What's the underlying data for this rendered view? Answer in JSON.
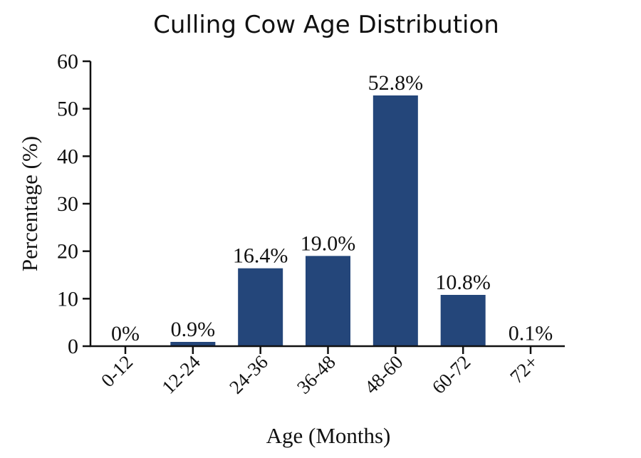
{
  "chart_data": {
    "type": "bar",
    "title": "Culling Cow Age Distribution",
    "xlabel": "Age (Months)",
    "ylabel": "Percentage (%)",
    "ylim": [
      0,
      60
    ],
    "yticks": [
      0,
      10,
      20,
      30,
      40,
      50,
      60
    ],
    "categories": [
      "0-12",
      "12-24",
      "24-36",
      "36-48",
      "48-60",
      "60-72",
      "72+"
    ],
    "values": [
      0,
      0.9,
      16.4,
      19.0,
      52.8,
      10.8,
      0.1
    ],
    "data_labels": [
      "0%",
      "0.9%",
      "16.4%",
      "19.0%",
      "52.8%",
      "10.8%",
      "0.1%"
    ],
    "bar_color": "#24467a",
    "grid": false,
    "legend": "none"
  }
}
